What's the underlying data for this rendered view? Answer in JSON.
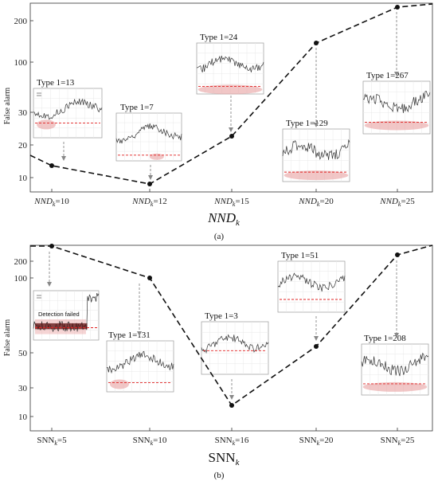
{
  "chart_data": [
    {
      "type": "line",
      "panel": "(a)",
      "xlabel_main": "NND",
      "xlabel_sub": "k",
      "ylabel": "False alarm",
      "y_ticks": [
        10,
        20,
        30,
        100,
        200
      ],
      "categories": [
        {
          "main": "NND",
          "sub": "k",
          "value": "=10"
        },
        {
          "main": "NND",
          "sub": "k",
          "value": "=12"
        },
        {
          "main": "NND",
          "sub": "k",
          "value": "=15"
        },
        {
          "main": "NND",
          "sub": "k",
          "value": "=20"
        },
        {
          "main": "NND",
          "sub": "k",
          "value": "=25"
        }
      ],
      "points": [
        {
          "x": "NNDk=10",
          "value": 13
        },
        {
          "x": "NNDk=12",
          "value": 7
        },
        {
          "x": "NNDk=15",
          "value": 24
        },
        {
          "x": "NNDk=20",
          "value": 129
        },
        {
          "x": "NNDk=25",
          "value": 267
        }
      ],
      "annotations": [
        {
          "label": "Type 1=13"
        },
        {
          "label": "Type 1=7"
        },
        {
          "label": "Type 1=24"
        },
        {
          "label": "Type 1=129"
        },
        {
          "label": "Type 1=267"
        }
      ]
    },
    {
      "type": "line",
      "panel": "(b)",
      "xlabel_main": "SNN",
      "xlabel_sub": "k",
      "ylabel": "False alarm",
      "y_ticks": [
        10,
        30,
        50,
        100,
        200
      ],
      "categories": [
        {
          "main": "SNN",
          "sub": "k",
          "value": "=5"
        },
        {
          "main": "SNN",
          "sub": "k",
          "value": "=10"
        },
        {
          "main": "SNN",
          "sub": "k",
          "value": "=16"
        },
        {
          "main": "SNN",
          "sub": "k",
          "value": "=20"
        },
        {
          "main": "SNN",
          "sub": "k",
          "value": "=25"
        }
      ],
      "points": [
        {
          "x": "SNNk=5",
          "value": 280
        },
        {
          "x": "SNNk=10",
          "value": 131
        },
        {
          "x": "SNNk=16",
          "value": 3
        },
        {
          "x": "SNNk=20",
          "value": 51
        },
        {
          "x": "SNNk=25",
          "value": 208
        }
      ],
      "annotations": [
        {
          "label": "Detection failed"
        },
        {
          "label": "Type 1=131"
        },
        {
          "label": "Type 1=3"
        },
        {
          "label": "Type 1=51"
        },
        {
          "label": "Type 1=208"
        }
      ]
    }
  ]
}
